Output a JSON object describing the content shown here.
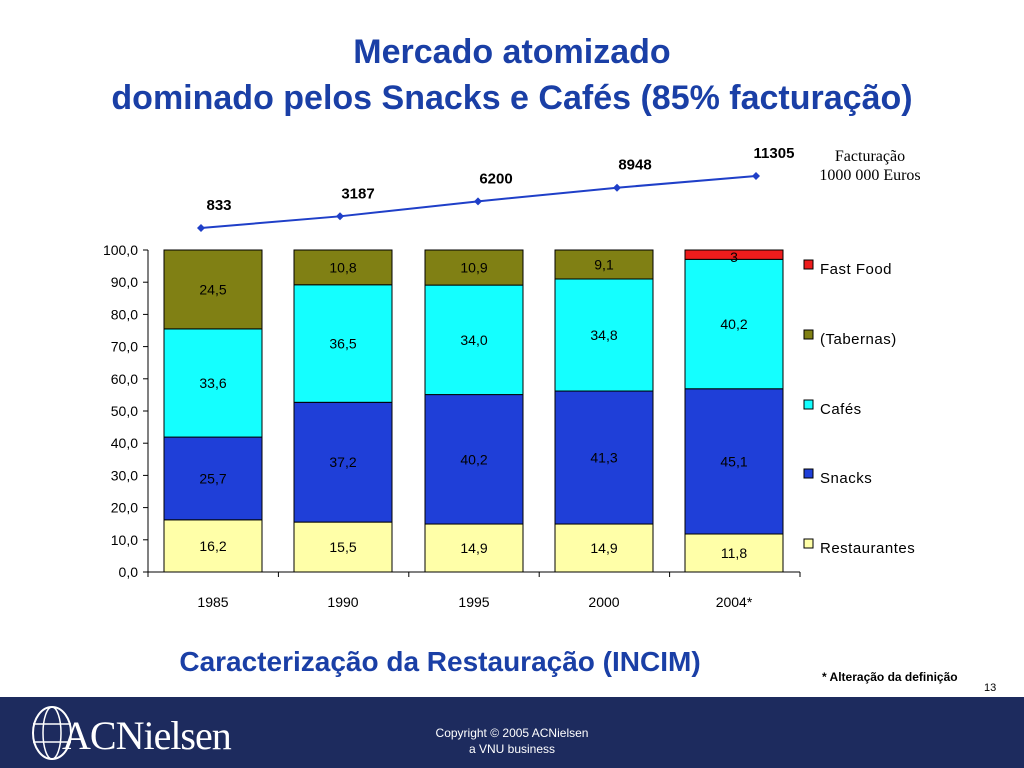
{
  "slide": {
    "title_line1": "Mercado atomizado",
    "title_line2": "dominado pelos Snacks e Cafés (85% facturação)",
    "unit_line1": "Facturação",
    "unit_line2": "1000 000 Euros",
    "subtitle": "Caracterização da Restauração (INCIM)",
    "note": "* Alteração da definição",
    "page_number": "13",
    "copyright_line1": "Copyright © 2005 ACNielsen",
    "copyright_line2": "a VNU business",
    "logo_text": "ACNielsen"
  },
  "colors": {
    "title": "#1a3fa6",
    "line": "#1f3fc8",
    "footer": "#1d2b5e"
  },
  "chart_data": {
    "type": "bar",
    "stacked": true,
    "categories": [
      "1985",
      "1990",
      "1995",
      "2000",
      "2004*"
    ],
    "ylim": [
      0,
      100
    ],
    "yticks": [
      "0,0",
      "10,0",
      "20,0",
      "30,0",
      "40,0",
      "50,0",
      "60,0",
      "70,0",
      "80,0",
      "90,0",
      "100,0"
    ],
    "legend_position": "right",
    "series": [
      {
        "name": "Restaurantes",
        "color": "#ffffa8",
        "values": [
          16.2,
          15.5,
          14.9,
          14.9,
          11.8
        ],
        "labels": [
          "16,2",
          "15,5",
          "14,9",
          "14,9",
          "11,8"
        ]
      },
      {
        "name": "Snacks",
        "color": "#1f3fd8",
        "values": [
          25.7,
          37.2,
          40.2,
          41.3,
          45.1
        ],
        "labels": [
          "25,7",
          "37,2",
          "40,2",
          "41,3",
          "45,1"
        ]
      },
      {
        "name": "Cafés",
        "color": "#14ffff",
        "values": [
          33.6,
          36.5,
          34.0,
          34.8,
          40.2
        ],
        "labels": [
          "33,6",
          "36,5",
          "34,0",
          "34,8",
          "40,2"
        ]
      },
      {
        "name": "(Tabernas)",
        "color": "#808014",
        "values": [
          24.5,
          10.8,
          10.9,
          9.1,
          0
        ],
        "labels": [
          "24,5",
          "10,8",
          "10,9",
          "9,1",
          ""
        ]
      },
      {
        "name": "Fast Food",
        "color": "#ee1c1c",
        "values": [
          0,
          0,
          0,
          0,
          3
        ],
        "labels": [
          "",
          "",
          "",
          "",
          "3"
        ]
      }
    ],
    "legend_order": [
      "Fast Food",
      "(Tabernas)",
      "Cafés",
      "Snacks",
      "Restaurantes"
    ],
    "revenue_line": {
      "values": [
        833,
        3187,
        6200,
        8948,
        11305
      ],
      "labels": [
        "833",
        "3187",
        "6200",
        "8948",
        "11305"
      ]
    }
  }
}
